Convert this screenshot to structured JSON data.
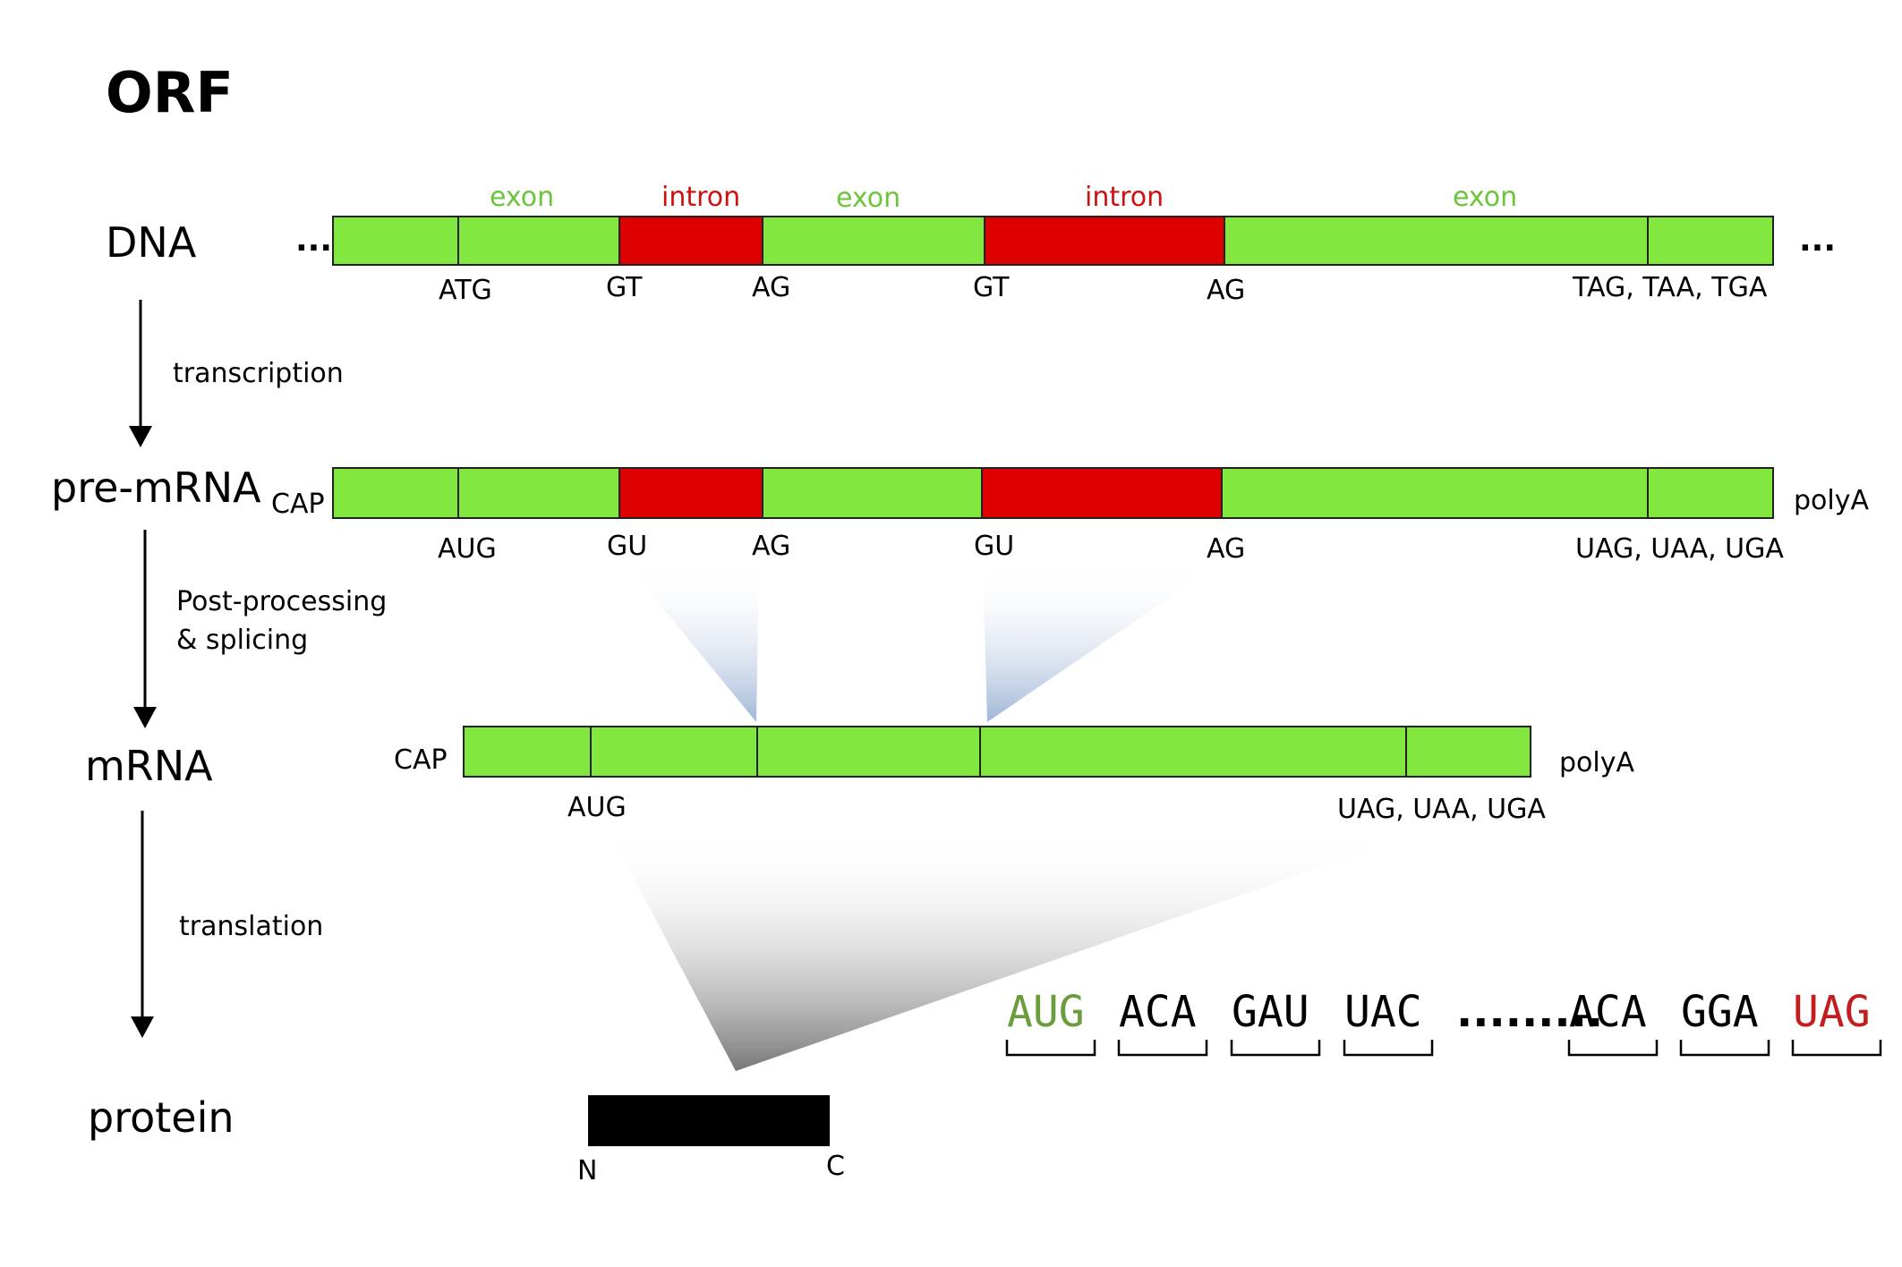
{
  "title": "ORF",
  "colors": {
    "exon": "#82e83f",
    "intron": "#dd0000",
    "outline": "#222222",
    "splice_cone": "#9fb6d6",
    "translation_cone": "#777777",
    "protein": "#000000",
    "start_codon": "#6a9e3c",
    "stop_codon": "#c31d1d"
  },
  "rows": {
    "dna": "DNA",
    "pre_mrna": "pre-mRNA",
    "mrna": "mRNA",
    "protein": "protein"
  },
  "steps": {
    "transcription": "transcription",
    "post_processing_line1": "Post-processing",
    "post_processing_line2": "& splicing",
    "translation": "translation"
  },
  "dna": {
    "ellipsis_left": "...",
    "ellipsis_right": "...",
    "region_labels": [
      "exon",
      "intron",
      "exon",
      "intron",
      "exon"
    ],
    "sites": [
      "ATG",
      "GT",
      "AG",
      "GT",
      "AG",
      "TAG, TAA, TGA"
    ]
  },
  "pre_mrna": {
    "cap": "CAP",
    "polya": "polyA",
    "sites": [
      "AUG",
      "GU",
      "AG",
      "GU",
      "AG",
      "UAG, UAA, UGA"
    ]
  },
  "mrna": {
    "cap": "CAP",
    "polya": "polyA",
    "sites": [
      "AUG",
      "UAG, UAA, UGA"
    ]
  },
  "codons": [
    "AUG",
    "ACA",
    "GAU",
    "UAC",
    ".........",
    "ACA",
    "GGA",
    "UAG"
  ],
  "protein": {
    "n_term": "N",
    "c_term": "C"
  }
}
